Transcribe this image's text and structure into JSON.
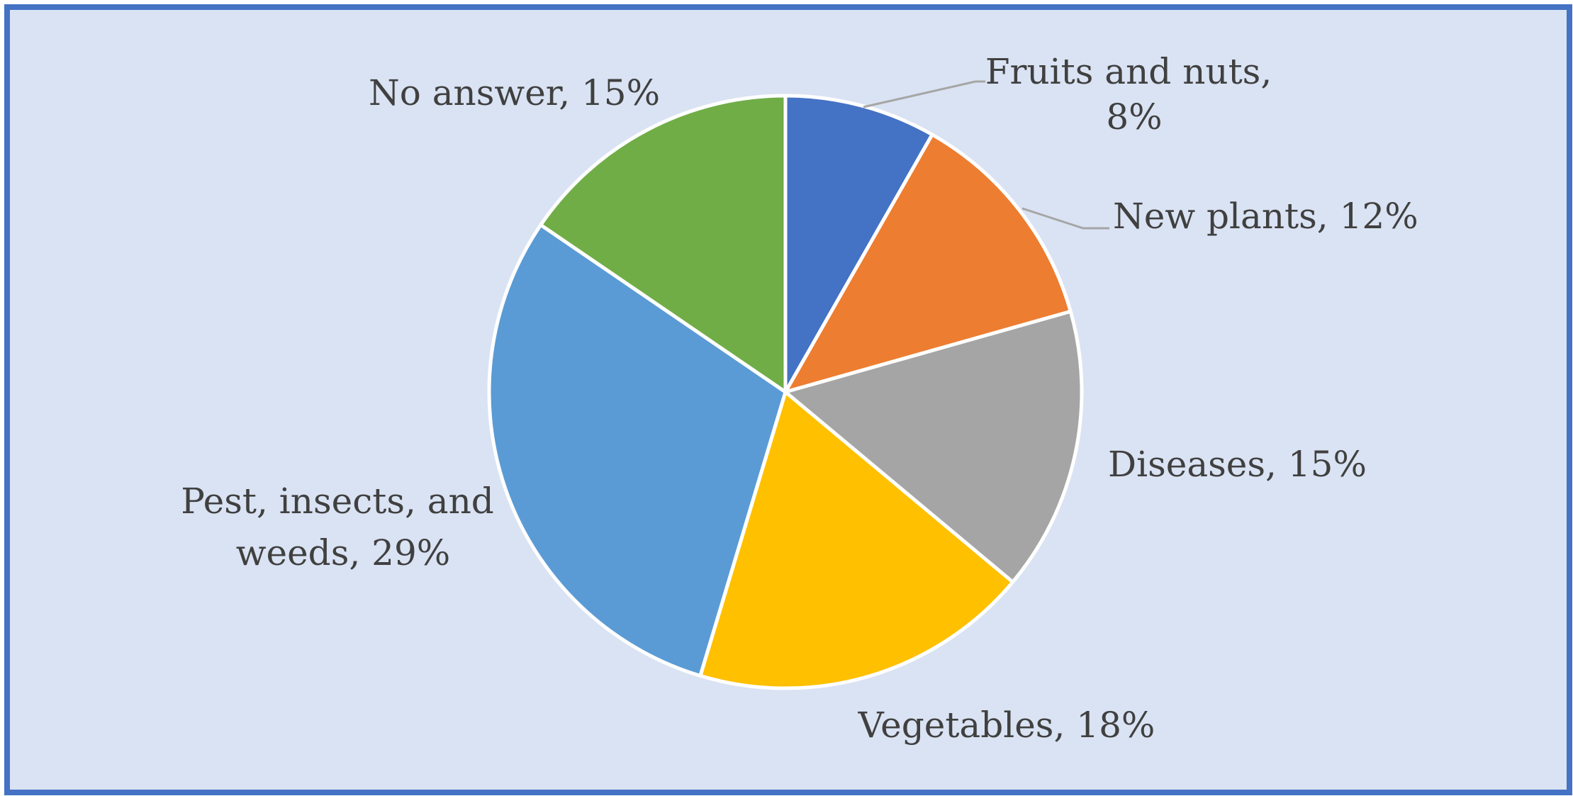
{
  "chart_data": {
    "type": "pie",
    "start_angle_deg": 0,
    "direction": "clockwise",
    "slices": [
      {
        "label_lines": [
          "Fruits and nuts,",
          "8%"
        ],
        "name": "Fruits and nuts",
        "value": 8,
        "color": "#4472c4"
      },
      {
        "label_lines": [
          "New plants, 12%"
        ],
        "name": "New plants",
        "value": 12,
        "color": "#ed7d31"
      },
      {
        "label_lines": [
          "Diseases, 15%"
        ],
        "name": "Diseases",
        "value": 15,
        "color": "#a5a5a5"
      },
      {
        "label_lines": [
          "Vegetables, 18%"
        ],
        "name": "Vegetables",
        "value": 18,
        "color": "#ffc000"
      },
      {
        "label_lines": [
          "Pest, insects, and",
          "weeds, 29%"
        ],
        "name": "Pest, insects, and weeds",
        "value": 29,
        "color": "#5b9bd5"
      },
      {
        "label_lines": [
          "No answer, 15%"
        ],
        "name": "No answer",
        "value": 15,
        "color": "#70ad47"
      }
    ],
    "leader_line_color": "#a6a6a6",
    "slice_border_color": "#ffffff",
    "label_color": "#404040",
    "background_color": "#dae3f3",
    "border_color": "#4472c4"
  }
}
